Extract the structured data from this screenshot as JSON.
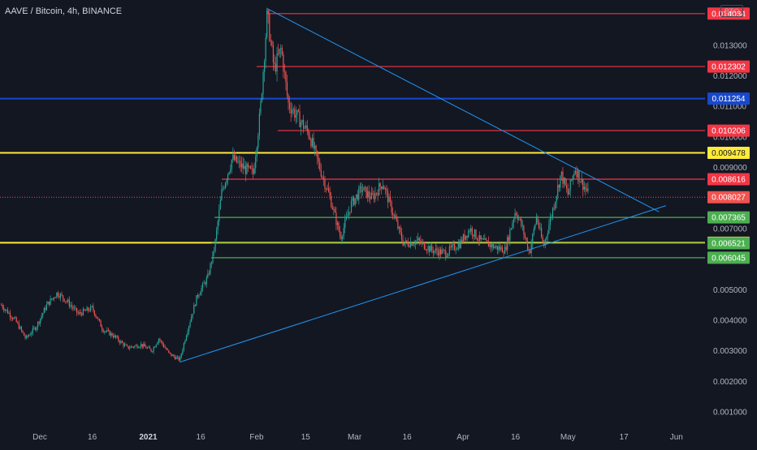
{
  "chart_header": {
    "symbol_title": "AAVE / Bitcoin, 4h, BINANCE",
    "currency": "BTC"
  },
  "chart_data": {
    "type": "candlestick",
    "title": "AAVE / Bitcoin, 4h, BINANCE",
    "ylabel": "BTC",
    "ylim": [
      0.00055,
      0.01448
    ],
    "x_ticks": [
      "Dec",
      "16",
      "2021",
      "16",
      "Feb",
      "15",
      "Mar",
      "16",
      "Apr",
      "16",
      "May",
      "17",
      "Jun"
    ],
    "x_tick_dates": [
      "2020-12-01",
      "2020-12-16",
      "2021-01-01",
      "2021-01-16",
      "2021-02-01",
      "2021-02-15",
      "2021-03-01",
      "2021-03-16",
      "2021-04-01",
      "2021-04-16",
      "2021-05-01",
      "2021-05-17",
      "2021-06-01"
    ],
    "y_ticks": [
      "0.013000",
      "0.012000",
      "0.011000",
      "0.010000",
      "0.009000",
      "0.007000",
      "0.005000",
      "0.004000",
      "0.003000",
      "0.002000",
      "0.001000"
    ],
    "y_tick_values": [
      0.013,
      0.012,
      0.011,
      0.01,
      0.009,
      0.007,
      0.005,
      0.004,
      0.003,
      0.002,
      0.001
    ],
    "grid": false,
    "price_line": {
      "value": 0.008027,
      "label": "0.008027",
      "color": "#ef5350"
    },
    "horizontal_levels": [
      {
        "value": 0.014034,
        "label": "0.014034",
        "color": "#f23645",
        "from_date": "2021-02-04"
      },
      {
        "value": 0.012302,
        "label": "0.012302",
        "color": "#f23645",
        "from_date": "2021-02-01"
      },
      {
        "value": 0.011254,
        "label": "0.011254",
        "color": "#1848cc",
        "from_date": "start"
      },
      {
        "value": 0.010206,
        "label": "0.010206",
        "color": "#f23645",
        "from_date": "2021-02-07"
      },
      {
        "value": 0.009478,
        "label": "0.009478",
        "color": "#ffeb3b",
        "from_date": "start"
      },
      {
        "value": 0.008616,
        "label": "0.008616",
        "color": "#f23645",
        "from_date": "2021-01-22"
      },
      {
        "value": 0.007365,
        "label": "0.007365",
        "color": "#4caf50",
        "from_date": "2021-01-20"
      },
      {
        "value": 0.006538,
        "label": "0.006538",
        "color": "#ffeb3b",
        "from_date": "start"
      },
      {
        "value": 0.006521,
        "label": "0.006521",
        "color": "#4caf50",
        "from_date": "2021-01-19"
      },
      {
        "value": 0.006045,
        "label": "0.006045",
        "color": "#4caf50",
        "from_date": "2021-01-19"
      }
    ],
    "trendlines": [
      {
        "from": [
          "2021-02-04",
          0.0142
        ],
        "to": [
          "2021-05-27",
          0.00755
        ],
        "color": "#2196f3"
      },
      {
        "from": [
          "2021-01-10",
          0.00263
        ],
        "to": [
          "2021-05-29",
          0.00775
        ],
        "color": "#2196f3"
      }
    ],
    "series_path": [
      [
        "2020-11-20",
        0.0045
      ],
      [
        "2020-11-24",
        0.004
      ],
      [
        "2020-11-27",
        0.0034
      ],
      [
        "2020-11-30",
        0.0038
      ],
      [
        "2020-12-03",
        0.0045
      ],
      [
        "2020-12-06",
        0.0049
      ],
      [
        "2020-12-09",
        0.0046
      ],
      [
        "2020-12-12",
        0.0042
      ],
      [
        "2020-12-16",
        0.0044
      ],
      [
        "2020-12-19",
        0.0037
      ],
      [
        "2020-12-22",
        0.0035
      ],
      [
        "2020-12-26",
        0.0031
      ],
      [
        "2020-12-30",
        0.0032
      ],
      [
        "2021-01-02",
        0.003
      ],
      [
        "2021-01-04",
        0.0034
      ],
      [
        "2021-01-07",
        0.0029
      ],
      [
        "2021-01-10",
        0.0027
      ],
      [
        "2021-01-12",
        0.0036
      ],
      [
        "2021-01-15",
        0.0048
      ],
      [
        "2021-01-18",
        0.0054
      ],
      [
        "2021-01-20",
        0.0064
      ],
      [
        "2021-01-22",
        0.0082
      ],
      [
        "2021-01-25",
        0.0093
      ],
      [
        "2021-01-28",
        0.009
      ],
      [
        "2021-01-31",
        0.0088
      ],
      [
        "2021-02-02",
        0.0108
      ],
      [
        "2021-02-04",
        0.014
      ],
      [
        "2021-02-06",
        0.0122
      ],
      [
        "2021-02-08",
        0.0129
      ],
      [
        "2021-02-10",
        0.0111
      ],
      [
        "2021-02-13",
        0.0106
      ],
      [
        "2021-02-16",
        0.0101
      ],
      [
        "2021-02-19",
        0.009
      ],
      [
        "2021-02-22",
        0.008
      ],
      [
        "2021-02-25",
        0.0067
      ],
      [
        "2021-02-28",
        0.0078
      ],
      [
        "2021-03-03",
        0.0083
      ],
      [
        "2021-03-06",
        0.008
      ],
      [
        "2021-03-09",
        0.0085
      ],
      [
        "2021-03-12",
        0.0075
      ],
      [
        "2021-03-15",
        0.0065
      ],
      [
        "2021-03-19",
        0.0066
      ],
      [
        "2021-03-23",
        0.0063
      ],
      [
        "2021-03-27",
        0.0062
      ],
      [
        "2021-03-31",
        0.0065
      ],
      [
        "2021-04-03",
        0.007
      ],
      [
        "2021-04-06",
        0.0066
      ],
      [
        "2021-04-10",
        0.0064
      ],
      [
        "2021-04-13",
        0.0063
      ],
      [
        "2021-04-16",
        0.0076
      ],
      [
        "2021-04-18",
        0.007
      ],
      [
        "2021-04-20",
        0.0062
      ],
      [
        "2021-04-22",
        0.0074
      ],
      [
        "2021-04-24",
        0.0064
      ],
      [
        "2021-04-27",
        0.0078
      ],
      [
        "2021-04-29",
        0.0088
      ],
      [
        "2021-05-01",
        0.0081
      ],
      [
        "2021-05-03",
        0.009
      ],
      [
        "2021-05-05",
        0.0085
      ],
      [
        "2021-05-07",
        0.0081
      ]
    ]
  }
}
